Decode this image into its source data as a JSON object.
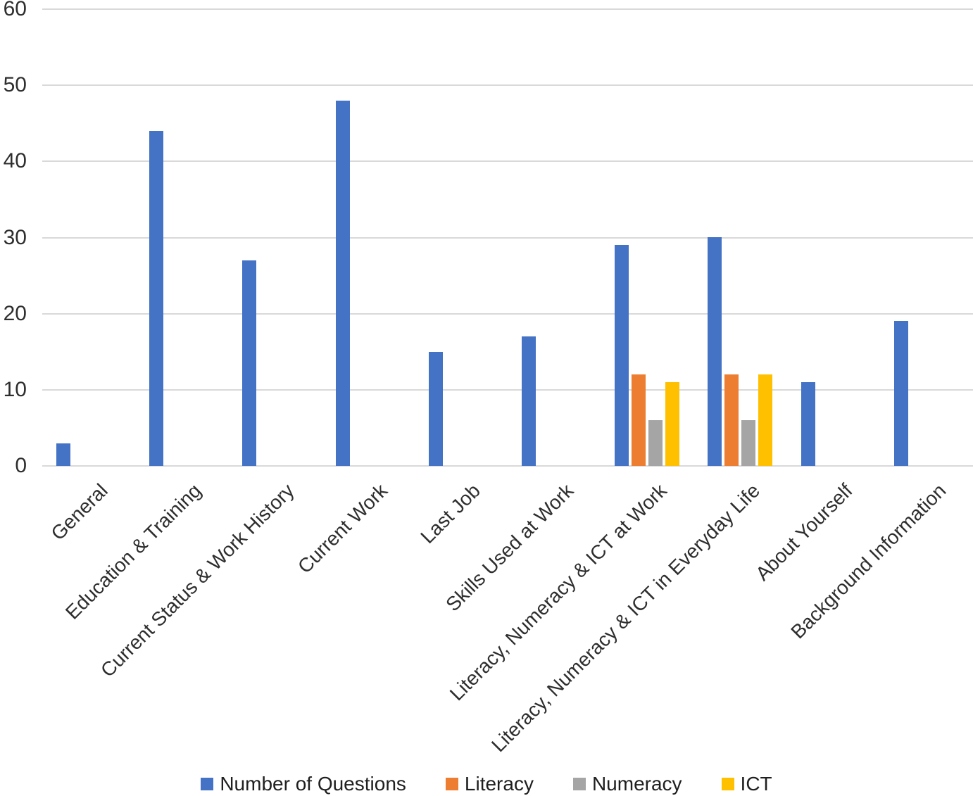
{
  "chart_data": {
    "type": "bar",
    "title": "",
    "xlabel": "",
    "ylabel": "",
    "categories": [
      "General",
      "Education & Training",
      "Current Status & Work History",
      "Current Work",
      "Last Job",
      "Skills Used at Work",
      "Literacy, Numeracy & ICT at Work",
      "Literacy, Numeracy & ICT in Everyday Life",
      "About Yourself",
      "Background Information"
    ],
    "series": [
      {
        "name": "Number of Questions",
        "color": "#4472C4",
        "values": [
          3,
          44,
          27,
          48,
          15,
          17,
          29,
          30,
          11,
          19
        ]
      },
      {
        "name": "Literacy",
        "color": "#ED7D31",
        "values": [
          0,
          0,
          0,
          0,
          0,
          0,
          12,
          12,
          0,
          0
        ]
      },
      {
        "name": "Numeracy",
        "color": "#A5A5A5",
        "values": [
          0,
          0,
          0,
          0,
          0,
          0,
          6,
          6,
          0,
          0
        ]
      },
      {
        "name": "ICT",
        "color": "#FFC000",
        "values": [
          0,
          0,
          0,
          0,
          0,
          0,
          11,
          12,
          0,
          0
        ]
      }
    ],
    "ylim": [
      0,
      60
    ],
    "yticks": [
      0,
      10,
      20,
      30,
      40,
      50,
      60
    ],
    "grid": true,
    "gridline_color": "#D9D9D9",
    "legend_position": "bottom",
    "x_label_rotation": -45
  }
}
